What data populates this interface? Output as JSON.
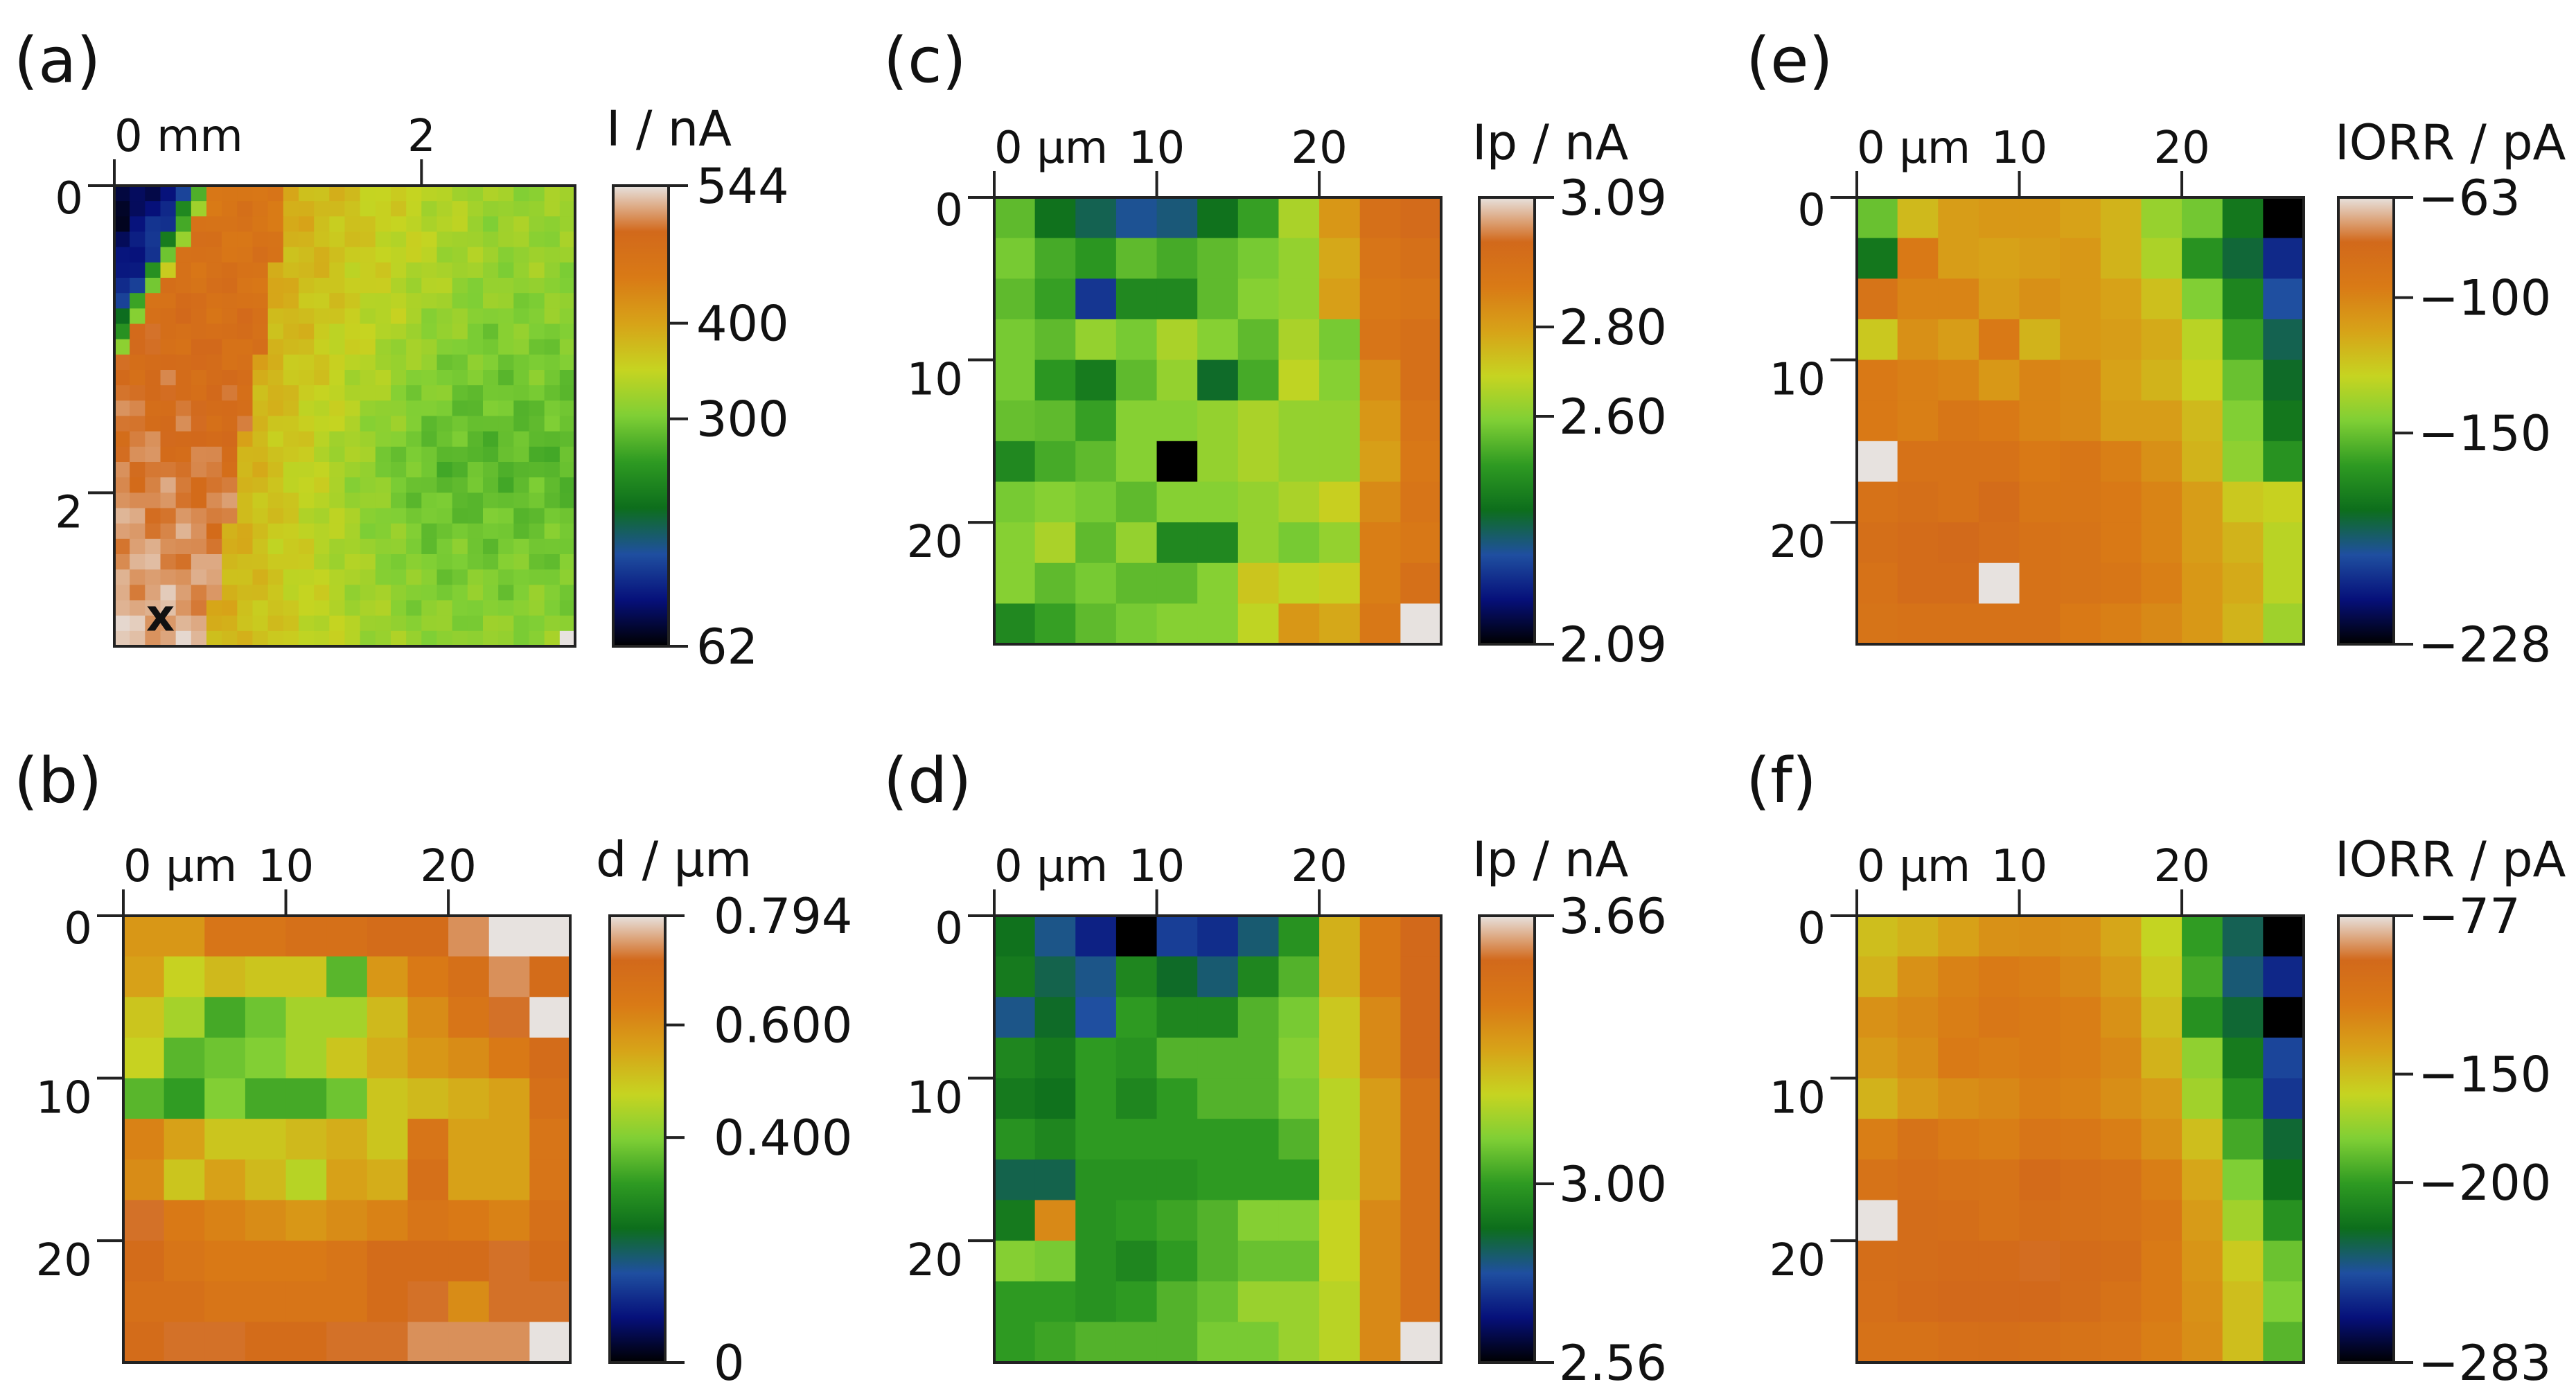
{
  "colors": {
    "colormap": [
      "#000000",
      "#06107a",
      "#1f4fa0",
      "#0d6e1c",
      "#2e9a22",
      "#7fcf35",
      "#c6d421",
      "#d7a318",
      "#d97a16",
      "#d2691b",
      "#e7e2df"
    ]
  },
  "chart_data": [
    {
      "id": "a",
      "type": "heatmap",
      "panel_label": "(a)",
      "colorbar": {
        "title": "I / nA",
        "min": 62,
        "max": 544,
        "ticks": [
          62,
          300,
          400,
          544
        ]
      },
      "x_axis": {
        "tick_labels": [
          "0 mm",
          "2"
        ],
        "tick_values": [
          0,
          2
        ]
      },
      "y_axis": {
        "tick_labels": [
          "0",
          "2"
        ],
        "tick_values": [
          0,
          2
        ]
      },
      "extent_mm": [
        3.0,
        3.0
      ],
      "grid": [
        30,
        30
      ],
      "marker": "x",
      "marker_position_mm": [
        0.3,
        2.8
      ]
    },
    {
      "id": "b",
      "type": "heatmap",
      "panel_label": "(b)",
      "colorbar": {
        "title": "d / µm",
        "min": 0,
        "max": 0.794,
        "ticks": [
          0,
          0.4,
          0.6,
          0.794
        ],
        "tick_labels": [
          "0",
          "0.400",
          "0.600",
          "0.794"
        ]
      },
      "x_axis": {
        "tick_labels": [
          "0 µm",
          "10",
          "20"
        ],
        "tick_values": [
          0,
          10,
          20
        ]
      },
      "y_axis": {
        "tick_labels": [
          "0",
          "10",
          "20"
        ],
        "tick_values": [
          0,
          10,
          20
        ]
      },
      "extent_um": [
        27.5,
        27.5
      ],
      "grid": [
        11,
        11
      ],
      "values": [
        [
          0.58,
          0.58,
          0.66,
          0.66,
          0.68,
          0.68,
          0.7,
          0.7,
          0.74,
          0.794,
          0.794
        ],
        [
          0.56,
          0.48,
          0.52,
          0.5,
          0.5,
          0.36,
          0.58,
          0.64,
          0.68,
          0.74,
          0.7
        ],
        [
          0.5,
          0.44,
          0.34,
          0.38,
          0.44,
          0.44,
          0.52,
          0.6,
          0.66,
          0.72,
          0.794
        ],
        [
          0.48,
          0.36,
          0.38,
          0.4,
          0.44,
          0.5,
          0.54,
          0.58,
          0.6,
          0.64,
          0.7
        ],
        [
          0.36,
          0.32,
          0.4,
          0.34,
          0.34,
          0.38,
          0.5,
          0.52,
          0.54,
          0.56,
          0.68
        ],
        [
          0.62,
          0.56,
          0.5,
          0.5,
          0.52,
          0.54,
          0.5,
          0.66,
          0.56,
          0.56,
          0.66
        ],
        [
          0.6,
          0.5,
          0.56,
          0.52,
          0.46,
          0.56,
          0.54,
          0.68,
          0.56,
          0.56,
          0.66
        ],
        [
          0.72,
          0.64,
          0.62,
          0.6,
          0.58,
          0.6,
          0.62,
          0.66,
          0.64,
          0.62,
          0.68
        ],
        [
          0.7,
          0.66,
          0.64,
          0.64,
          0.64,
          0.66,
          0.7,
          0.7,
          0.7,
          0.72,
          0.7
        ],
        [
          0.68,
          0.68,
          0.66,
          0.66,
          0.66,
          0.66,
          0.7,
          0.72,
          0.6,
          0.72,
          0.72
        ],
        [
          0.7,
          0.72,
          0.72,
          0.7,
          0.7,
          0.72,
          0.72,
          0.74,
          0.74,
          0.74,
          0.794
        ]
      ]
    },
    {
      "id": "c",
      "type": "heatmap",
      "panel_label": "(c)",
      "colorbar": {
        "title": "Ip / nA",
        "min": 2.09,
        "max": 3.09,
        "ticks": [
          2.09,
          2.6,
          2.8,
          3.09
        ],
        "tick_labels": [
          "2.09",
          "2.60",
          "2.80",
          "3.09"
        ]
      },
      "x_axis": {
        "tick_labels": [
          "0 µm",
          "10",
          "20"
        ],
        "tick_values": [
          0,
          10,
          20
        ]
      },
      "y_axis": {
        "tick_labels": [
          "0",
          "10",
          "20"
        ],
        "tick_values": [
          0,
          10,
          20
        ]
      },
      "extent_um": [
        27.5,
        27.5
      ],
      "grid": [
        11,
        11
      ],
      "values": [
        [
          2.55,
          2.4,
          2.35,
          2.3,
          2.32,
          2.4,
          2.5,
          2.65,
          2.82,
          2.95,
          2.98
        ],
        [
          2.58,
          2.52,
          2.48,
          2.55,
          2.52,
          2.55,
          2.58,
          2.62,
          2.78,
          2.92,
          2.95
        ],
        [
          2.55,
          2.5,
          2.25,
          2.45,
          2.45,
          2.55,
          2.6,
          2.62,
          2.8,
          2.9,
          2.92
        ],
        [
          2.58,
          2.55,
          2.62,
          2.58,
          2.65,
          2.6,
          2.55,
          2.65,
          2.58,
          2.92,
          2.95
        ],
        [
          2.58,
          2.48,
          2.42,
          2.55,
          2.62,
          2.38,
          2.52,
          2.68,
          2.6,
          2.85,
          2.95
        ],
        [
          2.56,
          2.55,
          2.5,
          2.6,
          2.6,
          2.62,
          2.65,
          2.62,
          2.62,
          2.82,
          2.92
        ],
        [
          2.45,
          2.52,
          2.55,
          2.6,
          2.09,
          2.62,
          2.65,
          2.62,
          2.62,
          2.8,
          2.9
        ],
        [
          2.58,
          2.6,
          2.58,
          2.55,
          2.6,
          2.6,
          2.62,
          2.65,
          2.7,
          2.85,
          2.92
        ],
        [
          2.6,
          2.65,
          2.55,
          2.62,
          2.45,
          2.45,
          2.62,
          2.58,
          2.62,
          2.88,
          2.9
        ],
        [
          2.6,
          2.55,
          2.58,
          2.55,
          2.55,
          2.6,
          2.72,
          2.68,
          2.7,
          2.88,
          2.95
        ],
        [
          2.45,
          2.5,
          2.55,
          2.58,
          2.6,
          2.6,
          2.68,
          2.82,
          2.78,
          2.9,
          3.09
        ]
      ]
    },
    {
      "id": "d",
      "type": "heatmap",
      "panel_label": "(d)",
      "colorbar": {
        "title": "Ip / nA",
        "min": 2.56,
        "max": 3.66,
        "ticks": [
          2.56,
          3.0,
          3.66
        ],
        "tick_labels": [
          "2.56",
          "3.00",
          "3.66"
        ]
      },
      "x_axis": {
        "tick_labels": [
          "0 µm",
          "10",
          "20"
        ],
        "tick_values": [
          0,
          10,
          20
        ]
      },
      "y_axis": {
        "tick_labels": [
          "0",
          "10",
          "20"
        ],
        "tick_values": [
          0,
          10,
          20
        ]
      },
      "extent_um": [
        27.5,
        27.5
      ],
      "grid": [
        11,
        11
      ],
      "values": [
        [
          2.9,
          2.8,
          2.7,
          2.56,
          2.75,
          2.72,
          2.82,
          2.98,
          3.3,
          3.45,
          3.55
        ],
        [
          2.92,
          2.85,
          2.8,
          2.95,
          2.88,
          2.82,
          2.95,
          3.05,
          3.3,
          3.45,
          3.55
        ],
        [
          2.8,
          2.88,
          2.78,
          3.0,
          2.95,
          2.95,
          3.05,
          3.1,
          3.25,
          3.4,
          3.55
        ],
        [
          2.95,
          2.92,
          3.0,
          2.98,
          3.05,
          3.05,
          3.05,
          3.12,
          3.25,
          3.4,
          3.55
        ],
        [
          2.92,
          2.9,
          3.0,
          2.95,
          3.0,
          3.05,
          3.05,
          3.1,
          3.2,
          3.35,
          3.5
        ],
        [
          2.98,
          2.95,
          3.0,
          3.0,
          3.0,
          3.0,
          3.0,
          3.05,
          3.2,
          3.35,
          3.5
        ],
        [
          2.85,
          2.85,
          2.98,
          2.98,
          2.98,
          3.0,
          3.0,
          3.0,
          3.2,
          3.35,
          3.5
        ],
        [
          2.92,
          3.4,
          2.98,
          3.0,
          3.02,
          3.05,
          3.12,
          3.12,
          3.22,
          3.4,
          3.5
        ],
        [
          3.12,
          3.1,
          2.98,
          2.95,
          3.0,
          3.05,
          3.08,
          3.08,
          3.22,
          3.4,
          3.5
        ],
        [
          3.0,
          3.0,
          2.98,
          3.0,
          3.05,
          3.08,
          3.15,
          3.15,
          3.2,
          3.4,
          3.5
        ],
        [
          3.0,
          3.02,
          3.05,
          3.05,
          3.05,
          3.1,
          3.1,
          3.15,
          3.2,
          3.4,
          3.66
        ]
      ]
    },
    {
      "id": "e",
      "type": "heatmap",
      "panel_label": "(e)",
      "colorbar": {
        "title": "IORR / pA",
        "min": -228,
        "max": -63,
        "ticks": [
          -228,
          -150,
          -100,
          -63
        ],
        "tick_labels": [
          "−228",
          "−150",
          "−100",
          "−63"
        ]
      },
      "x_axis": {
        "tick_labels": [
          "0 µm",
          "10",
          "20"
        ],
        "tick_values": [
          0,
          10,
          20
        ]
      },
      "y_axis": {
        "tick_labels": [
          "0",
          "10",
          "20"
        ],
        "tick_values": [
          0,
          10,
          20
        ]
      },
      "extent_um": [
        27.5,
        27.5
      ],
      "grid": [
        11,
        11
      ],
      "values": [
        [
          -150,
          -120,
          -110,
          -108,
          -108,
          -112,
          -118,
          -140,
          -148,
          -175,
          -228
        ],
        [
          -175,
          -95,
          -110,
          -112,
          -110,
          -108,
          -118,
          -135,
          -165,
          -182,
          -205
        ],
        [
          -90,
          -100,
          -100,
          -110,
          -105,
          -108,
          -112,
          -122,
          -145,
          -170,
          -195
        ],
        [
          -125,
          -105,
          -110,
          -95,
          -118,
          -108,
          -110,
          -115,
          -132,
          -160,
          -185
        ],
        [
          -95,
          -98,
          -100,
          -108,
          -100,
          -102,
          -112,
          -118,
          -128,
          -150,
          -180
        ],
        [
          -95,
          -98,
          -92,
          -95,
          -100,
          -102,
          -110,
          -110,
          -120,
          -145,
          -175
        ],
        [
          -63,
          -88,
          -88,
          -88,
          -95,
          -92,
          -98,
          -105,
          -118,
          -142,
          -165
        ],
        [
          -88,
          -85,
          -88,
          -82,
          -92,
          -92,
          -95,
          -100,
          -110,
          -125,
          -128
        ],
        [
          -85,
          -82,
          -80,
          -84,
          -88,
          -90,
          -95,
          -100,
          -110,
          -118,
          -132
        ],
        [
          -88,
          -82,
          -82,
          -63,
          -88,
          -90,
          -92,
          -98,
          -108,
          -115,
          -132
        ],
        [
          -90,
          -88,
          -88,
          -88,
          -88,
          -95,
          -98,
          -102,
          -108,
          -118,
          -138
        ]
      ]
    },
    {
      "id": "f",
      "type": "heatmap",
      "panel_label": "(f)",
      "colorbar": {
        "title": "IORR / pA",
        "min": -283,
        "max": -77,
        "ticks": [
          -283,
          -200,
          -150,
          -77
        ],
        "tick_labels": [
          "−283",
          "−200",
          "−150",
          "−77"
        ]
      },
      "x_axis": {
        "tick_labels": [
          "0 µm",
          "10",
          "20"
        ],
        "tick_values": [
          0,
          10,
          20
        ]
      },
      "y_axis": {
        "tick_labels": [
          "0",
          "10",
          "20"
        ],
        "tick_values": [
          0,
          10,
          20
        ]
      },
      "extent_um": [
        27.5,
        27.5
      ],
      "grid": [
        11,
        11
      ],
      "values": [
        [
          -150,
          -145,
          -138,
          -130,
          -128,
          -130,
          -140,
          -160,
          -200,
          -230,
          -283
        ],
        [
          -145,
          -130,
          -122,
          -118,
          -120,
          -125,
          -135,
          -155,
          -195,
          -235,
          -255
        ],
        [
          -130,
          -125,
          -120,
          -115,
          -118,
          -120,
          -130,
          -150,
          -205,
          -225,
          -283
        ],
        [
          -135,
          -128,
          -118,
          -120,
          -118,
          -120,
          -125,
          -145,
          -175,
          -215,
          -245
        ],
        [
          -145,
          -135,
          -128,
          -125,
          -120,
          -122,
          -128,
          -135,
          -170,
          -205,
          -250
        ],
        [
          -120,
          -110,
          -118,
          -120,
          -112,
          -115,
          -120,
          -130,
          -150,
          -195,
          -225
        ],
        [
          -110,
          -105,
          -108,
          -110,
          -100,
          -105,
          -108,
          -120,
          -140,
          -180,
          -220
        ],
        [
          -77,
          -102,
          -104,
          -108,
          -104,
          -106,
          -108,
          -115,
          -135,
          -170,
          -205
        ],
        [
          -104,
          -102,
          -100,
          -100,
          -97,
          -101,
          -104,
          -118,
          -132,
          -155,
          -185
        ],
        [
          -105,
          -100,
          -98,
          -98,
          -98,
          -102,
          -108,
          -118,
          -130,
          -150,
          -180
        ],
        [
          -108,
          -108,
          -105,
          -104,
          -106,
          -110,
          -112,
          -120,
          -128,
          -150,
          -190
        ]
      ]
    }
  ]
}
